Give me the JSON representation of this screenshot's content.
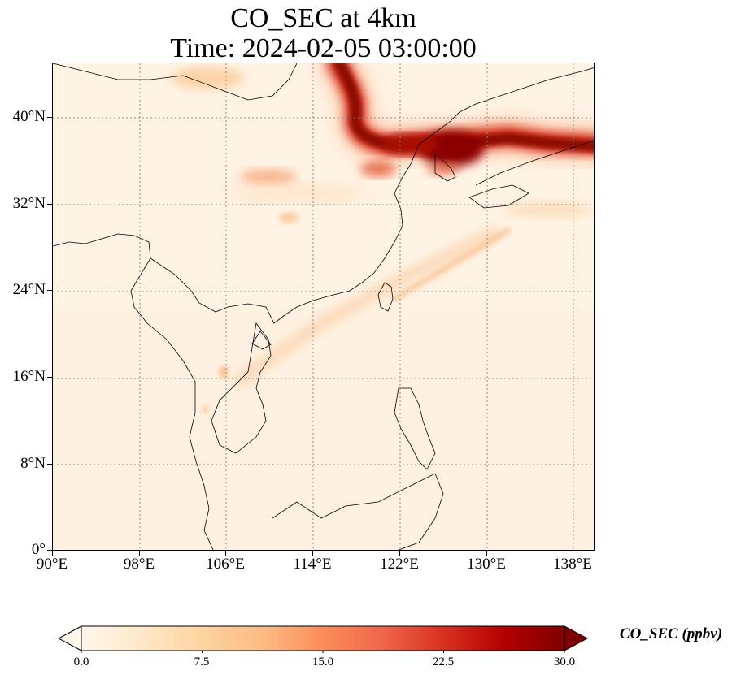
{
  "title": {
    "line1": "CO_SEC at 4km",
    "line2": "Time: 2024-02-05 03:00:00"
  },
  "map": {
    "lon_range": [
      90,
      140
    ],
    "lat_range": [
      0,
      45
    ],
    "gridlines": "dotted grey",
    "lat_ticks": [
      "0°",
      "8°N",
      "16°N",
      "24°N",
      "32°N",
      "40°N"
    ],
    "lat_tick_values": [
      0,
      8,
      16,
      24,
      32,
      40
    ],
    "lon_ticks": [
      "90°E",
      "98°E",
      "106°E",
      "114°E",
      "122°E",
      "130°E",
      "138°E"
    ],
    "lon_tick_values": [
      90,
      98,
      106,
      114,
      122,
      130,
      138
    ],
    "field": "CO_SEC",
    "level": "4km",
    "features": [
      {
        "name": "Korea-Japan plume",
        "peak_ppbv": 30
      },
      {
        "name": "north-south plume",
        "peak_ppbv": 30
      },
      {
        "name": "Taiwan-Indochina band",
        "peak_ppbv": 7
      },
      {
        "name": "central China patch",
        "peak_ppbv": 9
      }
    ]
  },
  "colorbar": {
    "label": "CO_SEC (ppbv)",
    "min": 0.0,
    "max": 30.0,
    "ticks": [
      "0.0",
      "7.5",
      "15.0",
      "22.5",
      "30.0"
    ],
    "tick_values": [
      0,
      7.5,
      15,
      22.5,
      30
    ],
    "extend": "both",
    "colormap": [
      "#fff7ec",
      "#fee8c8",
      "#fdd49e",
      "#fdbb84",
      "#fc8d59",
      "#ef6548",
      "#d7301f",
      "#b30000",
      "#7f0000"
    ]
  }
}
